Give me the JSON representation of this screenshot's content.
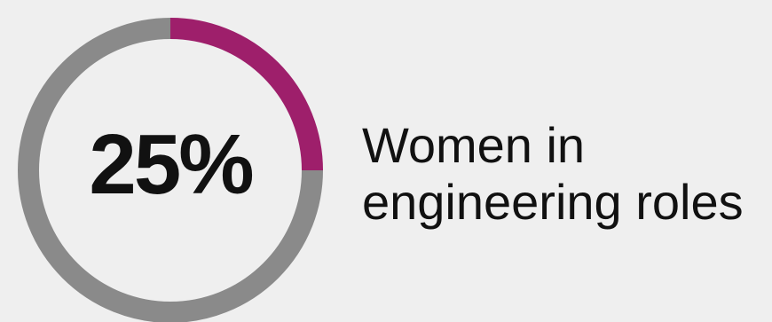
{
  "chart_data": {
    "type": "pie",
    "variant": "donut",
    "value_percent": 25,
    "center_label": "25%",
    "caption_lines": [
      "Women in",
      "engineering roles"
    ],
    "slices": [
      {
        "value": 25,
        "color": "#9e1f6b"
      },
      {
        "value": 75,
        "color": "#8a8a8a"
      }
    ]
  },
  "colors": {
    "accent": "#9e1f6b",
    "track": "#8a8a8a",
    "background": "#efefef",
    "text": "#111111"
  }
}
